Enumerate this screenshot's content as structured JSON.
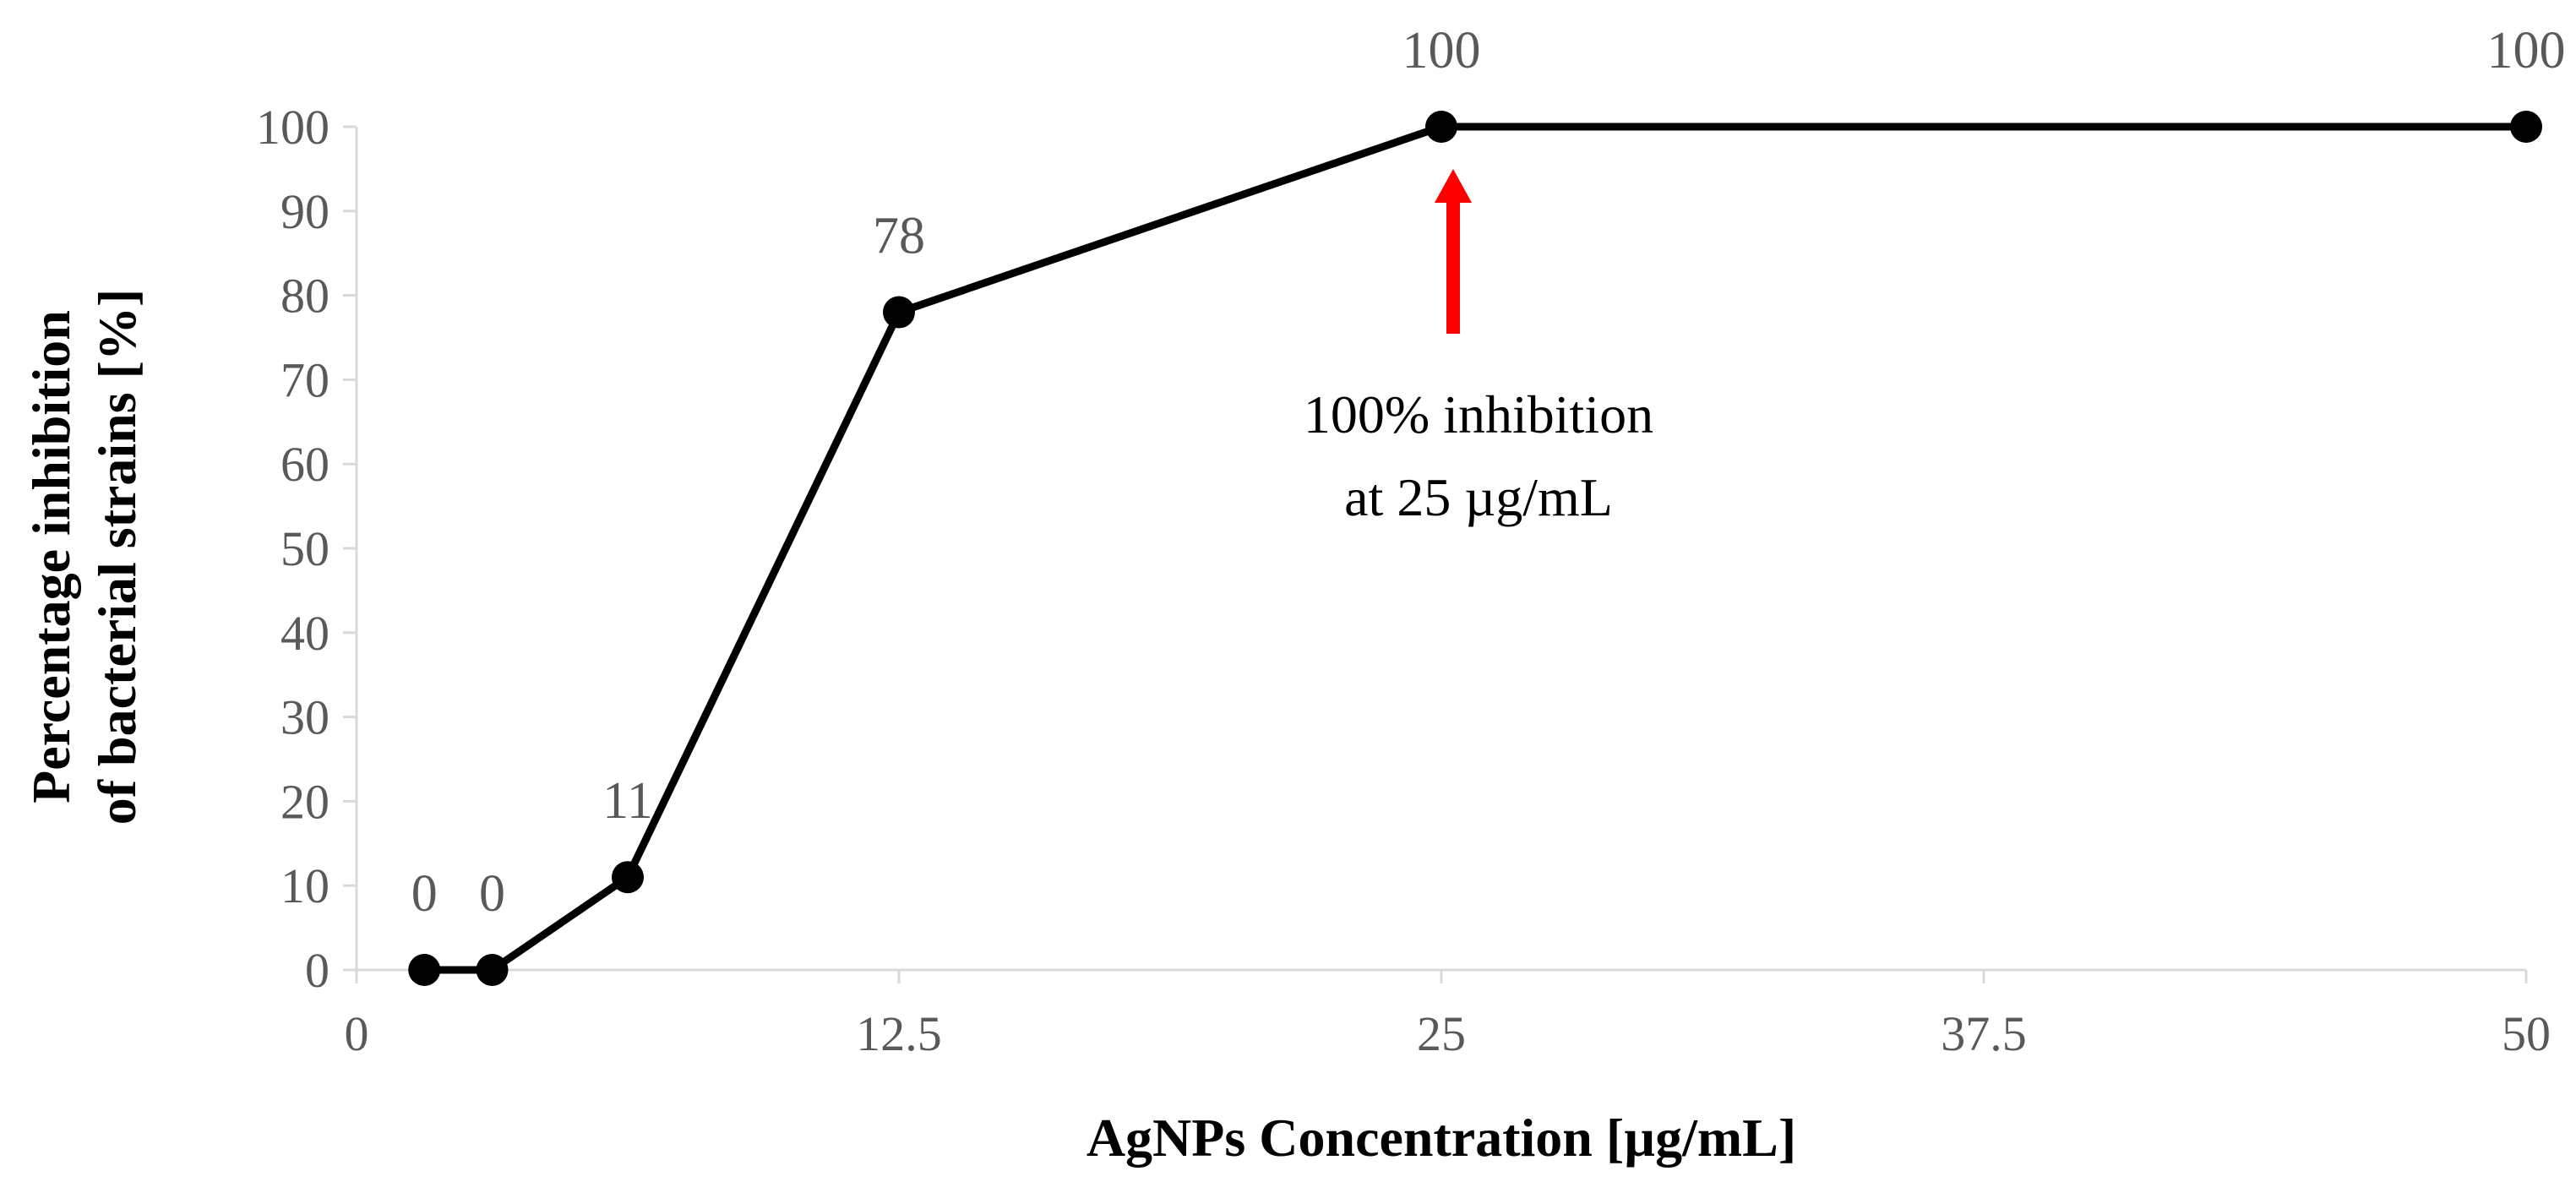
{
  "chart_data": {
    "type": "line",
    "title": "",
    "xlabel": "AgNPs Concentration [µg/mL]",
    "ylabel_lines": [
      "Percentage inhibition",
      "of bacterial strains [%]"
    ],
    "xlim": [
      0,
      50
    ],
    "ylim": [
      0,
      100
    ],
    "x_ticks": [
      0,
      12.5,
      25,
      37.5,
      50
    ],
    "x_tick_labels": [
      "0",
      "12.5",
      "25",
      "37.5",
      "50"
    ],
    "y_ticks": [
      0,
      10,
      20,
      30,
      40,
      50,
      60,
      70,
      80,
      90,
      100
    ],
    "y_tick_labels": [
      "0",
      "10",
      "20",
      "30",
      "40",
      "50",
      "60",
      "70",
      "80",
      "90",
      "100"
    ],
    "grid": false,
    "legend": "none",
    "series": [
      {
        "x": [
          1.5625,
          3.125,
          6.25,
          12.5,
          25,
          50
        ],
        "y": [
          0,
          0,
          11,
          78,
          100,
          100
        ],
        "labels": [
          "0",
          "0",
          "11",
          "78",
          "100",
          "100"
        ],
        "color": "#000000"
      }
    ],
    "annotation": {
      "lines": [
        "100% inhibition",
        "at 25 µg/mL"
      ],
      "x": 25,
      "arrow_color": "#ff0000"
    }
  }
}
